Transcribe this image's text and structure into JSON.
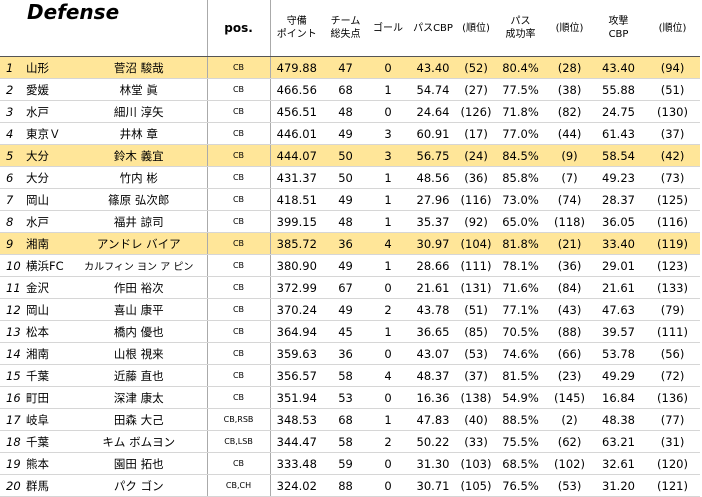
{
  "title": "Defense",
  "headers": {
    "pos": "pos.",
    "defense_points": [
      "守備",
      "ポイント"
    ],
    "team_goals_against": [
      "チーム",
      "総失点"
    ],
    "goals": "ゴール",
    "pass_cbp": "パスCBP",
    "pass_rank": "(順位)",
    "pass_success": [
      "パス",
      "成功率"
    ],
    "pass_success_rank": "(順位)",
    "attack_cbp": [
      "攻撃",
      "CBP"
    ],
    "attack_rank": "(順位)"
  },
  "rows": [
    {
      "rank": "1",
      "team": "山形",
      "name": "菅沼 駿哉",
      "pos": "CB",
      "points": "479.88",
      "conceded": "47",
      "goals": "0",
      "pass_cbp": "43.40",
      "pass_rank": "(52)",
      "pass_pct": "80.4%",
      "pct_rank": "(28)",
      "attack_cbp": "43.40",
      "attack_rank": "(94)",
      "highlight": true
    },
    {
      "rank": "2",
      "team": "愛媛",
      "name": "林堂 眞",
      "pos": "CB",
      "points": "466.56",
      "conceded": "68",
      "goals": "1",
      "pass_cbp": "54.74",
      "pass_rank": "(27)",
      "pass_pct": "77.5%",
      "pct_rank": "(38)",
      "attack_cbp": "55.88",
      "attack_rank": "(51)",
      "highlight": false
    },
    {
      "rank": "3",
      "team": "水戸",
      "name": "細川 淳矢",
      "pos": "CB",
      "points": "456.51",
      "conceded": "48",
      "goals": "0",
      "pass_cbp": "24.64",
      "pass_rank": "(126)",
      "pass_pct": "71.8%",
      "pct_rank": "(82)",
      "attack_cbp": "24.75",
      "attack_rank": "(130)",
      "highlight": false
    },
    {
      "rank": "4",
      "team": "東京Ｖ",
      "name": "井林 章",
      "pos": "CB",
      "points": "446.01",
      "conceded": "49",
      "goals": "3",
      "pass_cbp": "60.91",
      "pass_rank": "(17)",
      "pass_pct": "77.0%",
      "pct_rank": "(44)",
      "attack_cbp": "61.43",
      "attack_rank": "(37)",
      "highlight": false
    },
    {
      "rank": "5",
      "team": "大分",
      "name": "鈴木 義宜",
      "pos": "CB",
      "points": "444.07",
      "conceded": "50",
      "goals": "3",
      "pass_cbp": "56.75",
      "pass_rank": "(24)",
      "pass_pct": "84.5%",
      "pct_rank": "(9)",
      "attack_cbp": "58.54",
      "attack_rank": "(42)",
      "highlight": true
    },
    {
      "rank": "6",
      "team": "大分",
      "name": "竹内 彬",
      "pos": "CB",
      "points": "431.37",
      "conceded": "50",
      "goals": "1",
      "pass_cbp": "48.56",
      "pass_rank": "(36)",
      "pass_pct": "85.8%",
      "pct_rank": "(7)",
      "attack_cbp": "49.23",
      "attack_rank": "(73)",
      "highlight": false
    },
    {
      "rank": "7",
      "team": "岡山",
      "name": "篠原 弘次郎",
      "pos": "CB",
      "points": "418.51",
      "conceded": "49",
      "goals": "1",
      "pass_cbp": "27.96",
      "pass_rank": "(116)",
      "pass_pct": "73.0%",
      "pct_rank": "(74)",
      "attack_cbp": "28.37",
      "attack_rank": "(125)",
      "highlight": false
    },
    {
      "rank": "8",
      "team": "水戸",
      "name": "福井 諒司",
      "pos": "CB",
      "points": "399.15",
      "conceded": "48",
      "goals": "1",
      "pass_cbp": "35.37",
      "pass_rank": "(92)",
      "pass_pct": "65.0%",
      "pct_rank": "(118)",
      "attack_cbp": "36.05",
      "attack_rank": "(116)",
      "highlight": false
    },
    {
      "rank": "9",
      "team": "湘南",
      "name": "アンドレ バイア",
      "pos": "CB",
      "points": "385.72",
      "conceded": "36",
      "goals": "4",
      "pass_cbp": "30.97",
      "pass_rank": "(104)",
      "pass_pct": "81.8%",
      "pct_rank": "(21)",
      "attack_cbp": "33.40",
      "attack_rank": "(119)",
      "highlight": true
    },
    {
      "rank": "10",
      "team": "横浜FC",
      "name": "カルフィン ヨン ア ピン",
      "pos": "CB",
      "points": "380.90",
      "conceded": "49",
      "goals": "1",
      "pass_cbp": "28.66",
      "pass_rank": "(111)",
      "pass_pct": "78.1%",
      "pct_rank": "(36)",
      "attack_cbp": "29.01",
      "attack_rank": "(123)",
      "highlight": false
    },
    {
      "rank": "11",
      "team": "金沢",
      "name": "作田 裕次",
      "pos": "CB",
      "points": "372.99",
      "conceded": "67",
      "goals": "0",
      "pass_cbp": "21.61",
      "pass_rank": "(131)",
      "pass_pct": "71.6%",
      "pct_rank": "(84)",
      "attack_cbp": "21.61",
      "attack_rank": "(133)",
      "highlight": false
    },
    {
      "rank": "12",
      "team": "岡山",
      "name": "喜山 康平",
      "pos": "CB",
      "points": "370.24",
      "conceded": "49",
      "goals": "2",
      "pass_cbp": "43.78",
      "pass_rank": "(51)",
      "pass_pct": "77.1%",
      "pct_rank": "(43)",
      "attack_cbp": "47.63",
      "attack_rank": "(79)",
      "highlight": false
    },
    {
      "rank": "13",
      "team": "松本",
      "name": "橋内 優也",
      "pos": "CB",
      "points": "364.94",
      "conceded": "45",
      "goals": "1",
      "pass_cbp": "36.65",
      "pass_rank": "(85)",
      "pass_pct": "70.5%",
      "pct_rank": "(88)",
      "attack_cbp": "39.57",
      "attack_rank": "(111)",
      "highlight": false
    },
    {
      "rank": "14",
      "team": "湘南",
      "name": "山根 視来",
      "pos": "CB",
      "points": "359.63",
      "conceded": "36",
      "goals": "0",
      "pass_cbp": "43.07",
      "pass_rank": "(53)",
      "pass_pct": "74.6%",
      "pct_rank": "(66)",
      "attack_cbp": "53.78",
      "attack_rank": "(56)",
      "highlight": false
    },
    {
      "rank": "15",
      "team": "千葉",
      "name": "近藤 直也",
      "pos": "CB",
      "points": "356.57",
      "conceded": "58",
      "goals": "4",
      "pass_cbp": "48.37",
      "pass_rank": "(37)",
      "pass_pct": "81.5%",
      "pct_rank": "(23)",
      "attack_cbp": "49.29",
      "attack_rank": "(72)",
      "highlight": false
    },
    {
      "rank": "16",
      "team": "町田",
      "name": "深津 康太",
      "pos": "CB",
      "points": "351.94",
      "conceded": "53",
      "goals": "0",
      "pass_cbp": "16.36",
      "pass_rank": "(138)",
      "pass_pct": "54.9%",
      "pct_rank": "(145)",
      "attack_cbp": "16.84",
      "attack_rank": "(136)",
      "highlight": false
    },
    {
      "rank": "17",
      "team": "岐阜",
      "name": "田森 大己",
      "pos": "CB,RSB",
      "points": "348.53",
      "conceded": "68",
      "goals": "1",
      "pass_cbp": "47.83",
      "pass_rank": "(40)",
      "pass_pct": "88.5%",
      "pct_rank": "(2)",
      "attack_cbp": "48.38",
      "attack_rank": "(77)",
      "highlight": false
    },
    {
      "rank": "18",
      "team": "千葉",
      "name": "キム ボムヨン",
      "pos": "CB,LSB",
      "points": "344.47",
      "conceded": "58",
      "goals": "2",
      "pass_cbp": "50.22",
      "pass_rank": "(33)",
      "pass_pct": "75.5%",
      "pct_rank": "(62)",
      "attack_cbp": "63.21",
      "attack_rank": "(31)",
      "highlight": false
    },
    {
      "rank": "19",
      "team": "熊本",
      "name": "園田 拓也",
      "pos": "CB",
      "points": "333.48",
      "conceded": "59",
      "goals": "0",
      "pass_cbp": "31.30",
      "pass_rank": "(103)",
      "pass_pct": "68.5%",
      "pct_rank": "(102)",
      "attack_cbp": "32.61",
      "attack_rank": "(120)",
      "highlight": false
    },
    {
      "rank": "20",
      "team": "群馬",
      "name": "パク ゴン",
      "pos": "CB,CH",
      "points": "324.02",
      "conceded": "88",
      "goals": "0",
      "pass_cbp": "30.71",
      "pass_rank": "(105)",
      "pass_pct": "76.5%",
      "pct_rank": "(53)",
      "attack_cbp": "31.20",
      "attack_rank": "(121)",
      "highlight": false
    }
  ]
}
